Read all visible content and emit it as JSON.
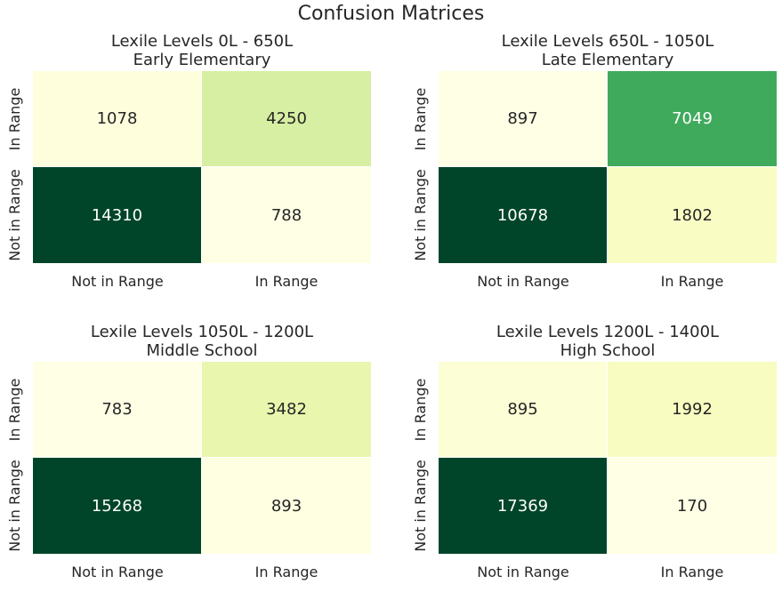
{
  "figure": {
    "title": "Confusion Matrices"
  },
  "chart_data": [
    {
      "type": "heatmap",
      "title": "Lexile Levels 0L - 650L",
      "subtitle": "Early Elementary",
      "x_categories": [
        "Not in Range",
        "In Range"
      ],
      "y_categories": [
        "In Range",
        "Not in Range"
      ],
      "values": [
        [
          1078,
          4250
        ],
        [
          14310,
          788
        ]
      ],
      "colormap": "YlGn",
      "colorbar": false
    },
    {
      "type": "heatmap",
      "title": "Lexile Levels 650L - 1050L",
      "subtitle": "Late Elementary",
      "x_categories": [
        "Not in Range",
        "In Range"
      ],
      "y_categories": [
        "In Range",
        "Not in Range"
      ],
      "values": [
        [
          897,
          7049
        ],
        [
          10678,
          1802
        ]
      ],
      "colormap": "YlGn",
      "colorbar": false
    },
    {
      "type": "heatmap",
      "title": "Lexile Levels 1050L - 1200L",
      "subtitle": "Middle School",
      "x_categories": [
        "Not in Range",
        "In Range"
      ],
      "y_categories": [
        "In Range",
        "Not in Range"
      ],
      "values": [
        [
          783,
          3482
        ],
        [
          15268,
          893
        ]
      ],
      "colormap": "YlGn",
      "colorbar": false
    },
    {
      "type": "heatmap",
      "title": "Lexile Levels 1200L - 1400L",
      "subtitle": "High School",
      "x_categories": [
        "Not in Range",
        "In Range"
      ],
      "y_categories": [
        "In Range",
        "Not in Range"
      ],
      "values": [
        [
          895,
          1992
        ],
        [
          17369,
          170
        ]
      ],
      "colormap": "YlGn",
      "colorbar": false
    }
  ]
}
